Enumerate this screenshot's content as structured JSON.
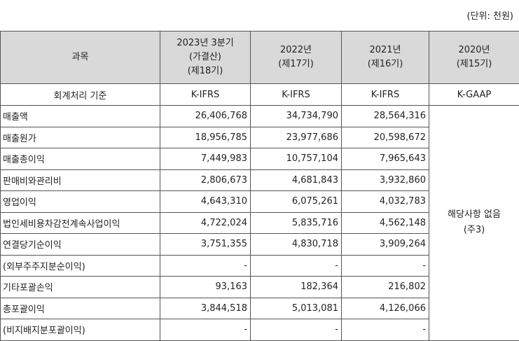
{
  "unit": "(단위: 천원)",
  "table": {
    "header": [
      [
        "과목"
      ],
      [
        "2023년 3분기",
        "(가결산)",
        "(제18기)"
      ],
      [
        "2022년",
        "(제17기)"
      ],
      [
        "2021년",
        "(제16기)"
      ],
      [
        "2020년",
        "(제15기)"
      ]
    ],
    "standard": [
      "회계처리 기준",
      "K-IFRS",
      "K-IFRS",
      "K-IFRS",
      "K-GAAP"
    ],
    "rows": [
      [
        "매출액",
        "26,406,768",
        "34,734,790",
        "28,564,316"
      ],
      [
        "매출원가",
        "18,956,785",
        "23,977,686",
        "20,598,672"
      ],
      [
        "매출총이익",
        "7,449,983",
        "10,757,104",
        "7,965,643"
      ],
      [
        "판매비와관리비",
        "2,806,673",
        "4,681,843",
        "3,932,860"
      ],
      [
        "영업이익",
        "4,643,310",
        "6,075,261",
        "4,032,783"
      ],
      [
        "법인세비용차감전계속사업이익",
        "4,722,024",
        "5,835,716",
        "4,562,148"
      ],
      [
        "연결당기순이익",
        "3,751,355",
        "4,830,718",
        "3,909,264"
      ],
      [
        "(외부주주지분순이익)",
        "-",
        "-",
        "-"
      ],
      [
        "기타포괄손익",
        "93,163",
        "182,364",
        "216,802"
      ],
      [
        "총포괄이익",
        "3,844,518",
        "5,013,081",
        "4,126,066"
      ],
      [
        "(비지배지분포괄이익)",
        "-",
        "-",
        "-"
      ]
    ],
    "note": [
      "해당사항 없음",
      "(주3)"
    ]
  }
}
